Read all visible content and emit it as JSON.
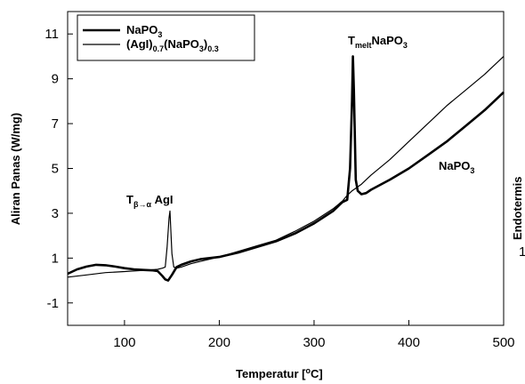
{
  "chart_data": {
    "type": "line",
    "xlabel_main": "Temperatur [",
    "xlabel_sup": "o",
    "xlabel_tail": "C]",
    "ylabel": "Aliran Panas (W/mg)",
    "right_label": "Endotermis",
    "right_tick": "1",
    "xlim": [
      40,
      500
    ],
    "ylim": [
      -2,
      12
    ],
    "x_ticks": [
      100,
      200,
      300,
      400,
      500
    ],
    "y_ticks": [
      -1,
      1,
      3,
      5,
      7,
      9,
      11
    ],
    "series": [
      {
        "name": "NaPO3",
        "name_main": "NaPO",
        "name_sub": "3",
        "color": "#000000",
        "x": [
          40,
          50,
          60,
          70,
          80,
          90,
          100,
          110,
          120,
          130,
          135,
          140,
          143,
          146,
          150,
          155,
          160,
          170,
          180,
          200,
          220,
          240,
          260,
          280,
          300,
          320,
          330,
          335,
          338,
          340,
          341,
          342,
          344,
          346,
          350,
          355,
          360,
          380,
          400,
          420,
          440,
          460,
          480,
          500
        ],
        "y": [
          0.3,
          0.5,
          0.62,
          0.7,
          0.68,
          0.62,
          0.55,
          0.5,
          0.47,
          0.45,
          0.42,
          0.2,
          0.05,
          0.0,
          0.25,
          0.6,
          0.7,
          0.85,
          0.95,
          1.05,
          1.25,
          1.5,
          1.75,
          2.1,
          2.55,
          3.1,
          3.5,
          3.6,
          5.0,
          8.0,
          10.0,
          8.5,
          4.5,
          4.0,
          3.85,
          3.9,
          4.05,
          4.5,
          5.0,
          5.6,
          6.2,
          6.9,
          7.6,
          8.4
        ]
      },
      {
        "name": "(AgI)0.7(NaPO3)0.3",
        "color": "#000000",
        "x": [
          40,
          60,
          80,
          100,
          120,
          135,
          140,
          143,
          145,
          147,
          148,
          150,
          152,
          155,
          160,
          170,
          180,
          200,
          220,
          240,
          260,
          280,
          300,
          320,
          330,
          335,
          340,
          350,
          360,
          380,
          400,
          420,
          440,
          460,
          480,
          500
        ],
        "y": [
          0.15,
          0.25,
          0.35,
          0.4,
          0.45,
          0.5,
          0.55,
          0.6,
          1.5,
          2.8,
          3.1,
          1.2,
          0.6,
          0.55,
          0.6,
          0.75,
          0.85,
          1.05,
          1.3,
          1.55,
          1.8,
          2.2,
          2.65,
          3.2,
          3.55,
          3.8,
          4.0,
          4.3,
          4.7,
          5.4,
          6.2,
          7.0,
          7.8,
          8.5,
          9.2,
          10.0
        ]
      }
    ],
    "annotations": [
      {
        "name": "tmelt",
        "main": "T",
        "sub": "melt",
        "tail": "NaPO",
        "tail_sub": "3"
      },
      {
        "name": "tbeta",
        "main": "T",
        "sub": "β→α",
        "tail": " AgI"
      },
      {
        "name": "napo3-curve",
        "main": "NaPO",
        "sub": "3"
      }
    ],
    "legend": {
      "position": "top-left",
      "entry1_main": "NaPO",
      "entry1_sub": "3",
      "entry2_a": "(AgI)",
      "entry2_a_sub": "0.7",
      "entry2_b": "(NaPO",
      "entry2_b_sub": "3",
      "entry2_c": ")",
      "entry2_c_sub": "0.3",
      "thick_line_width": 2.6,
      "thin_line_width": 1.2
    },
    "grid": false
  }
}
